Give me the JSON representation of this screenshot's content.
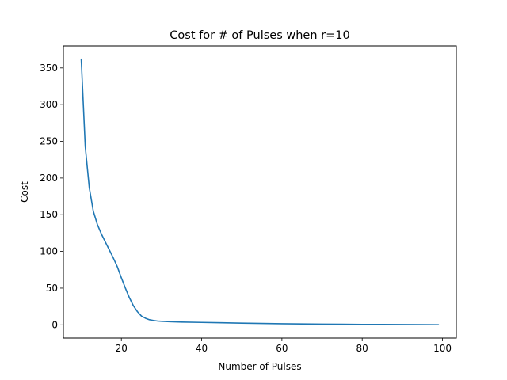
{
  "chart_data": {
    "type": "line",
    "title": "Cost for # of Pulses when r=10",
    "xlabel": "Number of Pulses",
    "ylabel": "Cost",
    "xlim": [
      5.55,
      103.45
    ],
    "ylim": [
      -18,
      380
    ],
    "xticks": [
      20,
      40,
      60,
      80,
      100
    ],
    "yticks": [
      0,
      50,
      100,
      150,
      200,
      250,
      300,
      350
    ],
    "grid": false,
    "legend": "none",
    "series": [
      {
        "color": "#1f77b4",
        "x": [
          10,
          11,
          12,
          13,
          14,
          15,
          16,
          17,
          18,
          19,
          20,
          21,
          22,
          23,
          24,
          25,
          26,
          27,
          28,
          29,
          30,
          32,
          35,
          40,
          45,
          50,
          55,
          60,
          65,
          70,
          75,
          80,
          85,
          90,
          95,
          99
        ],
        "y": [
          362,
          243,
          187,
          155,
          137,
          124,
          113,
          102,
          91,
          79,
          64,
          50,
          37,
          26,
          18,
          12,
          9,
          7,
          6,
          5.2,
          4.8,
          4.3,
          3.8,
          3.3,
          2.8,
          2.3,
          1.9,
          1.5,
          1.2,
          1.0,
          0.8,
          0.6,
          0.5,
          0.4,
          0.3,
          0.2
        ]
      }
    ]
  }
}
